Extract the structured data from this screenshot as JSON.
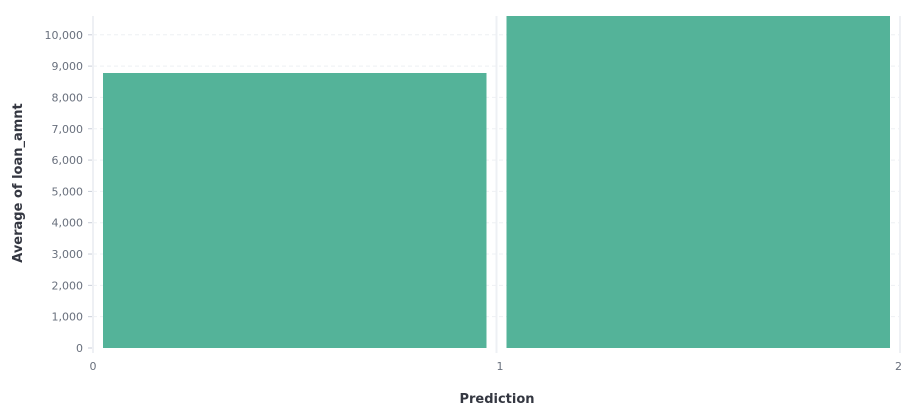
{
  "chart_data": {
    "type": "bar",
    "xlabel": "Prediction",
    "ylabel": "Average of loan_amnt",
    "x_ticks": [
      "0",
      "1",
      "2"
    ],
    "y_ticks": [
      "0",
      "1,000",
      "2,000",
      "3,000",
      "4,000",
      "5,000",
      "6,000",
      "7,000",
      "8,000",
      "9,000",
      "10,000"
    ],
    "ylim": [
      0,
      10600
    ],
    "xlim": [
      0,
      2
    ],
    "bars": [
      {
        "x_start": 0,
        "x_end": 1,
        "value": 8780
      },
      {
        "x_start": 1,
        "x_end": 2,
        "value": 10600
      }
    ],
    "bar_color": "#54b399",
    "grid": "horizontal dashed + vertical at bins"
  }
}
